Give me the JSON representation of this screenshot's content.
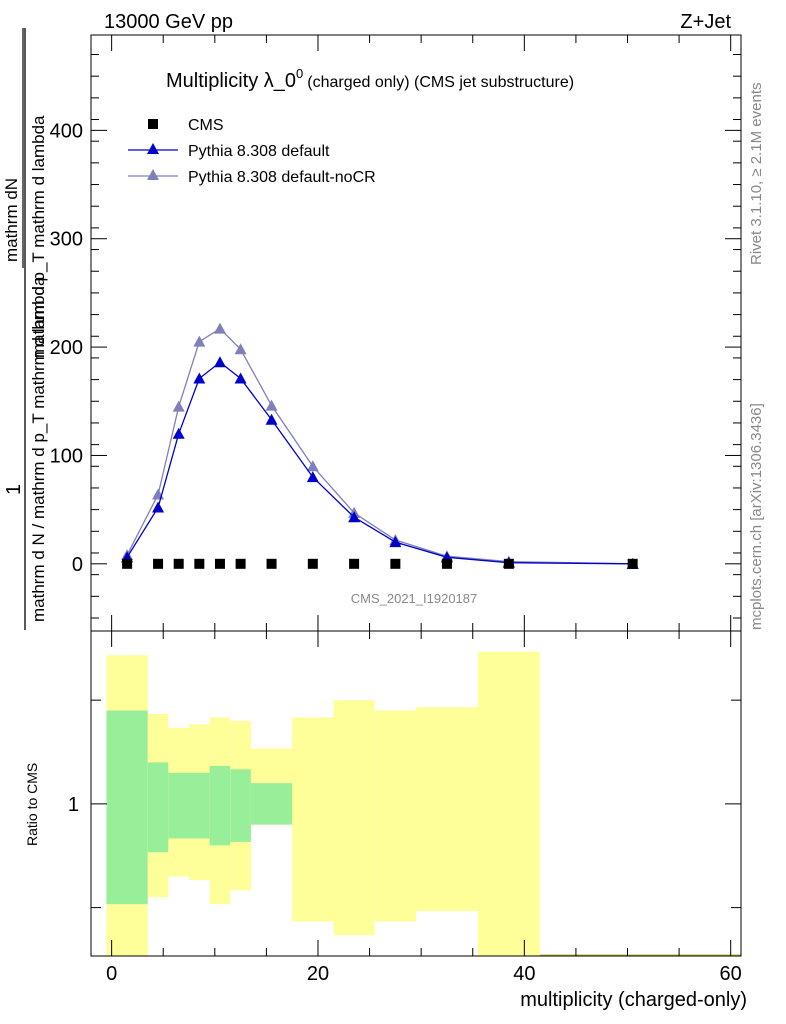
{
  "header": {
    "energy_label": "13000 GeV pp",
    "process_label": "Z+Jet"
  },
  "side_labels": {
    "rivet": "Rivet 3.1.10, ≥ 2.1M events",
    "mcplots": "mcplots.cern.ch [arXiv:1306.3436]"
  },
  "chart_data": [
    {
      "type": "line",
      "title_main": "Multiplicity λ_0",
      "title_sup": "0",
      "title_rest": "(charged only) (CMS jet substructure)",
      "watermark": "CMS_2021_I1920187",
      "ylabel_numer": "mathrm dN",
      "ylabel_denom": "mathrm d p_T mathrm d lambda",
      "ylabel_prefix_numer": "1",
      "ylabel_prefix_denom": "mathrm d N / mathrm d p_T mathrm d lambda",
      "xlim": [
        -2,
        61
      ],
      "ylim": [
        -62,
        488
      ],
      "yticks": [
        0,
        100,
        200,
        300,
        400
      ],
      "ytick_labels": [
        "0",
        "100",
        "200",
        "300",
        "400"
      ],
      "legend_position": "top-left",
      "series": [
        {
          "name": "CMS",
          "marker": "square",
          "color": "#000000",
          "x": [
            1.5,
            4.5,
            6.5,
            8.5,
            10.5,
            12.5,
            15.5,
            19.5,
            23.5,
            27.5,
            32.5,
            38.5,
            50.5
          ],
          "y": [
            0,
            0,
            0,
            0,
            0,
            0,
            0,
            0,
            0,
            0,
            0,
            0,
            0
          ]
        },
        {
          "name": "Pythia 8.308 default",
          "marker": "triangle",
          "color": "#0000cc",
          "x": [
            1.5,
            4.5,
            6.5,
            8.5,
            10.5,
            12.5,
            15.5,
            19.5,
            23.5,
            27.5,
            32.5,
            38.5,
            50.5
          ],
          "y": [
            6,
            52,
            120,
            171,
            186,
            171,
            133,
            80,
            43,
            20,
            6,
            1,
            0
          ]
        },
        {
          "name": "Pythia 8.308 default-noCR",
          "marker": "triangle",
          "color": "#8080b8",
          "x": [
            1.5,
            4.5,
            6.5,
            8.5,
            10.5,
            12.5,
            15.5,
            19.5,
            23.5,
            27.5,
            32.5,
            38.5,
            50.5
          ],
          "y": [
            8,
            64,
            145,
            205,
            217,
            198,
            146,
            90,
            47,
            22,
            7,
            2,
            0
          ]
        }
      ]
    },
    {
      "type": "area",
      "ylabel": "Ratio to CMS",
      "xlabel": "multiplicity (charged-only)",
      "xlim": [
        -2,
        61
      ],
      "xticks": [
        0,
        20,
        40,
        60
      ],
      "xtick_labels": [
        "0",
        "20",
        "40",
        "60"
      ],
      "yticks": [
        1
      ],
      "ytick_labels": [
        "1"
      ],
      "ylim": [
        0.56,
        1.5
      ],
      "bands": [
        {
          "x_lo": -0.5,
          "x_hi": 3.5,
          "stat_lo": 0.71,
          "stat_hi": 1.27,
          "tot_lo": 0.56,
          "tot_hi": 1.43
        },
        {
          "x_lo": 3.5,
          "x_hi": 5.5,
          "stat_lo": 0.86,
          "stat_hi": 1.12,
          "tot_lo": 0.73,
          "tot_hi": 1.26
        },
        {
          "x_lo": 5.5,
          "x_hi": 7.5,
          "stat_lo": 0.9,
          "stat_hi": 1.09,
          "tot_lo": 0.79,
          "tot_hi": 1.22
        },
        {
          "x_lo": 7.5,
          "x_hi": 9.5,
          "stat_lo": 0.9,
          "stat_hi": 1.09,
          "tot_lo": 0.78,
          "tot_hi": 1.23
        },
        {
          "x_lo": 9.5,
          "x_hi": 11.5,
          "stat_lo": 0.88,
          "stat_hi": 1.11,
          "tot_lo": 0.71,
          "tot_hi": 1.25
        },
        {
          "x_lo": 11.5,
          "x_hi": 13.5,
          "stat_lo": 0.89,
          "stat_hi": 1.1,
          "tot_lo": 0.75,
          "tot_hi": 1.24
        },
        {
          "x_lo": 13.5,
          "x_hi": 17.5,
          "stat_lo": 0.94,
          "stat_hi": 1.06,
          "tot_lo": 0.94,
          "tot_hi": 1.16
        },
        {
          "x_lo": 17.5,
          "x_hi": 21.5,
          "stat_lo": 1.0,
          "stat_hi": 1.0,
          "tot_lo": 0.66,
          "tot_hi": 1.25
        },
        {
          "x_lo": 21.5,
          "x_hi": 25.5,
          "stat_lo": 1.0,
          "stat_hi": 1.0,
          "tot_lo": 0.62,
          "tot_hi": 1.3
        },
        {
          "x_lo": 25.5,
          "x_hi": 29.5,
          "stat_lo": 1.0,
          "stat_hi": 1.0,
          "tot_lo": 0.66,
          "tot_hi": 1.27
        },
        {
          "x_lo": 29.5,
          "x_hi": 35.5,
          "stat_lo": 1.0,
          "stat_hi": 1.0,
          "tot_lo": 0.69,
          "tot_hi": 1.28
        },
        {
          "x_lo": 35.5,
          "x_hi": 41.5,
          "stat_lo": 1.0,
          "stat_hi": 1.0,
          "tot_lo": 0.56,
          "tot_hi": 1.44
        }
      ],
      "colors": {
        "stat": "#99ee99",
        "total": "#ffff99"
      }
    }
  ]
}
